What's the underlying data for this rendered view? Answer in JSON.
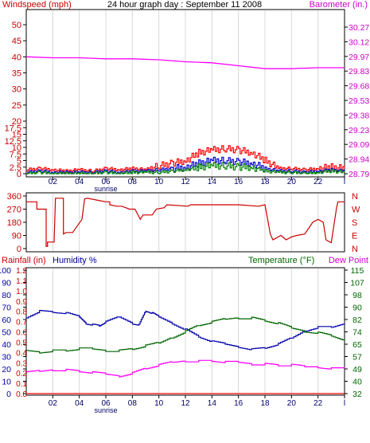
{
  "chart_data": [
    {
      "type": "line",
      "title": "24 hour graph day : September 11 2008",
      "left_axis_label": "Windspeed (mph)",
      "right_axis_label": "Barometer (in.)",
      "x_tick_labels": [
        "02",
        "04",
        "06",
        "08",
        "10",
        "12",
        "14",
        "16",
        "18",
        "20",
        "22",
        "l"
      ],
      "x_extra_label": "sunrise",
      "y_left_ticks": [
        "0",
        "2.5",
        "5",
        "7.5",
        "10",
        "12.5",
        "15",
        "17.5",
        "20",
        "25",
        "30",
        "35",
        "40",
        "45",
        "50"
      ],
      "y_right_ticks": [
        "28.79",
        "28.94",
        "29.09",
        "29.23",
        "29.38",
        "29.53",
        "29.68",
        "29.83",
        "29.97",
        "30.12",
        "30.27"
      ],
      "series": [
        {
          "color": "#ff0000",
          "x": [
            0,
            1,
            2,
            3,
            4,
            5,
            6,
            7,
            8,
            9,
            10,
            11,
            12,
            13,
            14,
            15,
            16,
            17,
            18,
            19,
            20,
            21,
            22,
            23,
            24
          ],
          "values": [
            1.5,
            2,
            1.5,
            1,
            1.5,
            1,
            2,
            1.5,
            2,
            1.5,
            3,
            4,
            5,
            8,
            9,
            9.5,
            9,
            8,
            5,
            2,
            2,
            1.5,
            2,
            2.5,
            2
          ]
        },
        {
          "color": "#0000cc",
          "x": [
            0,
            1,
            2,
            3,
            4,
            5,
            6,
            7,
            8,
            9,
            10,
            11,
            12,
            13,
            14,
            15,
            16,
            17,
            18,
            19,
            20,
            21,
            22,
            23,
            24
          ],
          "values": [
            0.5,
            1,
            0.5,
            0.5,
            0.5,
            0.5,
            1,
            0.5,
            1,
            1,
            1.5,
            2,
            2.5,
            4,
            5,
            5,
            4.5,
            4,
            2,
            1,
            1,
            0.5,
            1,
            1.5,
            1
          ]
        },
        {
          "color": "#008000",
          "x": [
            0,
            1,
            2,
            3,
            4,
            5,
            6,
            7,
            8,
            9,
            10,
            11,
            12,
            13,
            14,
            15,
            16,
            17,
            18,
            19,
            20,
            21,
            22,
            23,
            24
          ],
          "values": [
            0,
            0.5,
            0,
            0,
            0,
            0,
            0.5,
            0,
            0.5,
            0.5,
            0.5,
            1,
            1.5,
            2.5,
            3,
            3,
            2.5,
            2.5,
            1,
            0.5,
            0.5,
            0,
            0.5,
            1,
            0.5
          ]
        },
        {
          "color": "#ff00ff",
          "x": [
            0,
            2,
            4,
            6,
            8,
            10,
            12,
            14,
            16,
            18,
            20,
            22,
            24
          ],
          "values": [
            29.97,
            29.96,
            29.96,
            29.95,
            29.95,
            29.94,
            29.92,
            29.91,
            29.88,
            29.85,
            29.85,
            29.86,
            29.86
          ]
        }
      ]
    },
    {
      "type": "line",
      "left_ticks": [
        "360",
        "270",
        "180",
        "90",
        "0"
      ],
      "right_ticks": [
        "N",
        "W",
        "S",
        "E",
        "N"
      ],
      "series": [
        {
          "color": "#cc0000",
          "x": [
            0,
            0.8,
            0.8,
            1.5,
            1.5,
            1.6,
            1.6,
            2.1,
            2.2,
            2.8,
            2.8,
            3.0,
            3.5,
            4.2,
            4.4,
            4.6,
            6.0,
            6.3,
            6.3,
            6.8,
            7.2,
            7.8,
            8.2,
            8.6,
            8.8,
            9.5,
            9.8,
            10.4,
            10.6,
            12.2,
            12.4,
            15.5,
            16.0,
            17.5,
            18.0,
            18.4,
            18.6,
            18.8,
            19.2,
            19.6,
            20.0,
            20.4,
            21.0,
            21.6,
            22.0,
            22.4,
            22.6,
            23.0,
            23.4,
            23.5,
            24.0
          ],
          "values": [
            320,
            320,
            270,
            270,
            15,
            15,
            45,
            45,
            345,
            345,
            100,
            110,
            110,
            200,
            340,
            345,
            320,
            320,
            300,
            290,
            290,
            270,
            270,
            200,
            230,
            230,
            270,
            280,
            300,
            290,
            300,
            300,
            300,
            290,
            300,
            100,
            60,
            70,
            90,
            60,
            80,
            90,
            100,
            180,
            200,
            180,
            60,
            40,
            280,
            320,
            320
          ]
        }
      ]
    },
    {
      "type": "line",
      "left_axis_label": "Rainfall (in)",
      "middle_axis_label": "Humidity %",
      "right_axis_label": "Temperature (°F)",
      "right_axis_label_2": "Dew Point",
      "x_tick_labels": [
        "02",
        "04",
        "06",
        "08",
        "10",
        "12",
        "14",
        "16",
        "18",
        "20",
        "22",
        "l"
      ],
      "x_extra_label": "sunrise",
      "y_rain_ticks": [
        "0.0",
        "0.1",
        "0.2",
        "0.3",
        "0.4",
        "0.5",
        "0.6",
        "0.7",
        "0.8",
        "0.9",
        "1.0",
        "1.1",
        "1.2"
      ],
      "y_humidity_ticks": [
        "0",
        "10",
        "20",
        "30",
        "40",
        "50",
        "60",
        "70",
        "80",
        "90",
        "100"
      ],
      "y_temp_ticks": [
        "32",
        "40",
        "49",
        "57",
        "65",
        "74",
        "82",
        "90",
        "98",
        "107",
        "115"
      ],
      "series": [
        {
          "name": "Humidity %",
          "color": "#0000aa",
          "x": [
            0,
            1,
            2,
            3,
            4,
            4.5,
            5,
            5.5,
            6,
            7,
            8,
            8.5,
            9,
            9.5,
            10,
            11,
            12,
            13,
            14,
            15,
            16,
            17,
            18,
            19,
            20,
            21,
            22,
            23,
            24
          ],
          "values": [
            62,
            67,
            66,
            65,
            62,
            57,
            56,
            55,
            58,
            62,
            57,
            56,
            67,
            65,
            62,
            57,
            52,
            46,
            42,
            40,
            38,
            36,
            37,
            40,
            45,
            51,
            54,
            54,
            57
          ]
        },
        {
          "name": "Temperature (°F)",
          "color": "#006600",
          "x": [
            0,
            1,
            2,
            3,
            4,
            5,
            6,
            7,
            8,
            9,
            10,
            11,
            12,
            13,
            14,
            15,
            16,
            17,
            18,
            19,
            20,
            21,
            22,
            23,
            24
          ],
          "values": [
            61,
            60,
            61,
            61,
            62,
            62,
            61,
            61,
            62,
            64,
            66,
            70,
            74,
            78,
            80,
            82,
            83,
            83,
            81,
            79,
            76,
            74,
            73,
            71,
            68
          ]
        },
        {
          "name": "Dew Point",
          "color": "#ff00ff",
          "x": [
            0,
            1,
            2,
            3,
            4,
            5,
            6,
            7,
            8,
            9,
            10,
            11,
            12,
            13,
            14,
            15,
            16,
            17,
            18,
            19,
            20,
            21,
            22,
            23,
            24
          ],
          "values": [
            46,
            47,
            48,
            48,
            47,
            46,
            45,
            44,
            46,
            49,
            51,
            53,
            54,
            54,
            54,
            53,
            53,
            52,
            52,
            51,
            51,
            50,
            50,
            49,
            49
          ]
        },
        {
          "name": "Rainfall (in)",
          "color": "#ff0000",
          "x": [
            0,
            24
          ],
          "values": [
            0,
            0
          ]
        }
      ]
    }
  ]
}
